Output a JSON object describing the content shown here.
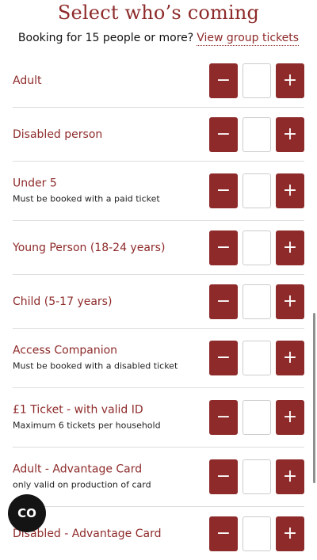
{
  "heading": "Select who’s coming",
  "group_booking": {
    "text": "Booking for 15 people or more?",
    "link_text": "View group tickets"
  },
  "decrement_symbol": "−",
  "increment_symbol": "+",
  "ticket_types": [
    {
      "label": "Adult",
      "note": "",
      "quantity": ""
    },
    {
      "label": "Disabled person",
      "note": "",
      "quantity": ""
    },
    {
      "label": "Under 5",
      "note": "Must be booked with a paid ticket",
      "quantity": ""
    },
    {
      "label": "Young Person (18-24 years)",
      "note": "",
      "quantity": ""
    },
    {
      "label": "Child (5-17 years)",
      "note": "",
      "quantity": ""
    },
    {
      "label": "Access Companion",
      "note": "Must be booked with a disabled ticket",
      "quantity": ""
    },
    {
      "label": "£1 Ticket - with valid ID",
      "note": "Maximum 6 tickets per household",
      "quantity": ""
    },
    {
      "label": "Adult - Advantage Card",
      "note": "only valid on production of card",
      "quantity": ""
    },
    {
      "label": "Disabled - Advantage Card",
      "note": "",
      "quantity": ""
    }
  ],
  "co_badge": "CO"
}
